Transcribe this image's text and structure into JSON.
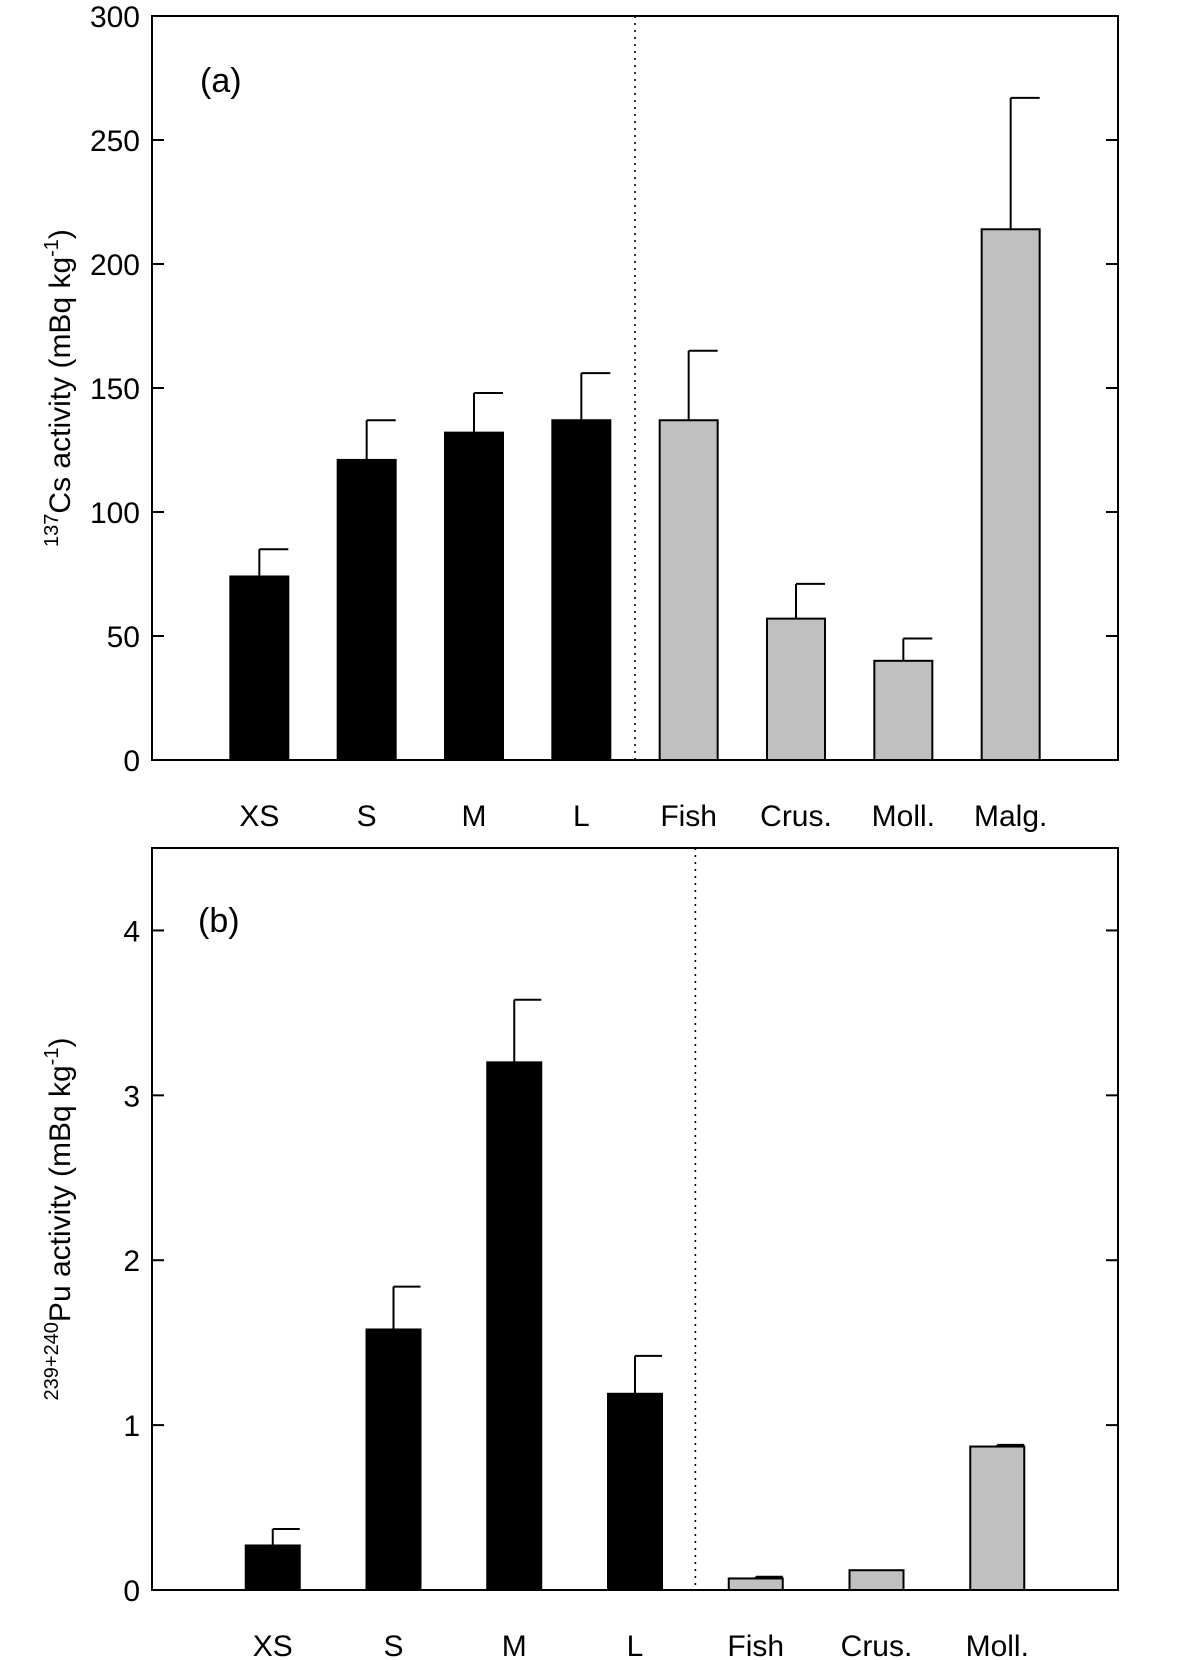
{
  "chart_data": [
    {
      "type": "bar",
      "panel_label": "(a)",
      "ylabel": {
        "sup": "137",
        "main": "Cs activity (mBq kg",
        "sup2": "-1",
        "tail": ")"
      },
      "ylim": [
        0,
        300
      ],
      "yticks": [
        0,
        50,
        100,
        150,
        200,
        250,
        300
      ],
      "categories": [
        "XS",
        "S",
        "M",
        "L",
        "Fish",
        "Crus.",
        "Moll.",
        "Malg."
      ],
      "values": [
        74,
        121,
        132,
        137,
        137,
        57,
        40,
        214
      ],
      "errors": [
        11,
        16,
        16,
        19,
        28,
        14,
        9,
        53
      ],
      "bar_colors": [
        "#000000",
        "#000000",
        "#000000",
        "#000000",
        "#c0c0c0",
        "#c0c0c0",
        "#c0c0c0",
        "#c0c0c0"
      ],
      "separator_after_index": 3,
      "grid": false
    },
    {
      "type": "bar",
      "panel_label": "(b)",
      "ylabel": {
        "sup": "239+240",
        "main": "Pu activity (mBq kg",
        "sup2": "-1",
        "tail": ")"
      },
      "ylim": [
        0,
        4.5
      ],
      "yticks": [
        0,
        1,
        2,
        3,
        4
      ],
      "categories": [
        "XS",
        "S",
        "M",
        "L",
        "Fish",
        "Crus.",
        "Moll."
      ],
      "values": [
        0.27,
        1.58,
        3.2,
        1.19,
        0.07,
        0.12,
        0.87
      ],
      "errors": [
        0.1,
        0.26,
        0.38,
        0.23,
        0.01,
        0.0,
        0.01
      ],
      "bar_colors": [
        "#000000",
        "#000000",
        "#000000",
        "#000000",
        "#c0c0c0",
        "#c0c0c0",
        "#c0c0c0"
      ],
      "separator_after_index": 3,
      "grid": false
    }
  ]
}
